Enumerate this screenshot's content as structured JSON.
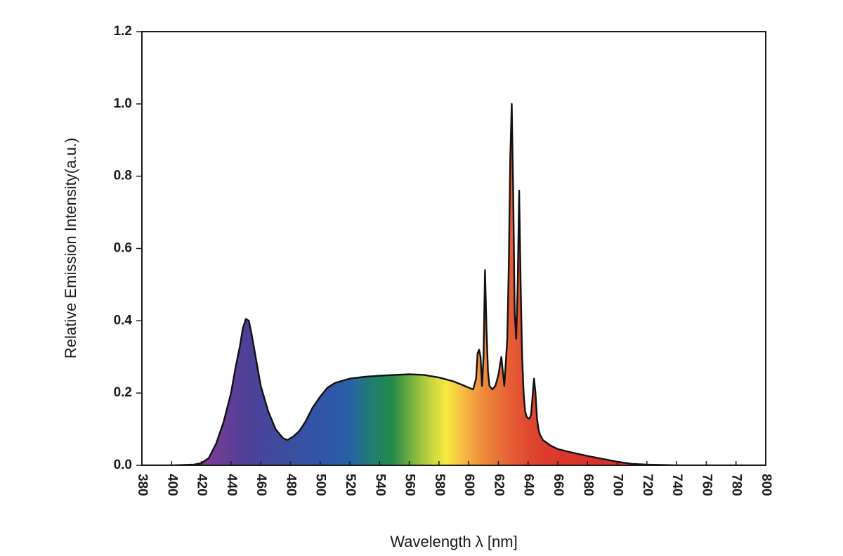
{
  "chart_data": {
    "type": "area",
    "title": "",
    "xlabel": "Wavelength λ [nm]",
    "ylabel": "Relative Emission Intensity(a.u.)",
    "xlim": [
      380,
      800
    ],
    "ylim": [
      0,
      1.2
    ],
    "x_ticks": [
      380,
      400,
      420,
      440,
      460,
      480,
      500,
      520,
      540,
      560,
      580,
      600,
      620,
      640,
      660,
      680,
      700,
      720,
      740,
      760,
      780,
      800
    ],
    "y_ticks": [
      "0.0",
      "0.2",
      "0.4",
      "0.6",
      "0.8",
      "1.0",
      "1.2"
    ],
    "grid": false,
    "legend": "none",
    "fill": "visible-spectrum gradient",
    "line_color": "#111111",
    "series": [
      {
        "x": [
          380,
          400,
          415,
          420,
          425,
          430,
          435,
          440,
          443,
          446,
          448,
          450,
          452,
          454,
          457,
          460,
          465,
          470,
          475,
          478,
          482,
          486,
          490,
          495,
          500,
          505,
          510,
          520,
          530,
          540,
          550,
          560,
          570,
          580,
          590,
          596,
          600,
          603,
          605,
          606,
          607,
          608,
          609,
          610,
          611,
          612,
          613,
          614,
          616,
          618,
          620,
          622,
          624,
          626,
          627,
          628,
          629,
          630,
          631,
          632,
          633,
          634,
          635,
          636,
          637,
          638,
          639,
          640,
          641,
          642,
          643,
          644,
          645,
          646,
          647,
          648,
          650,
          655,
          660,
          670,
          680,
          690,
          700,
          710,
          720,
          730,
          740,
          760,
          780,
          800
        ],
        "y": [
          0.0,
          0.0,
          0.002,
          0.006,
          0.02,
          0.06,
          0.12,
          0.2,
          0.27,
          0.33,
          0.38,
          0.405,
          0.4,
          0.36,
          0.29,
          0.22,
          0.15,
          0.1,
          0.075,
          0.07,
          0.08,
          0.095,
          0.12,
          0.16,
          0.19,
          0.215,
          0.228,
          0.24,
          0.245,
          0.248,
          0.25,
          0.252,
          0.25,
          0.243,
          0.232,
          0.222,
          0.215,
          0.21,
          0.24,
          0.31,
          0.32,
          0.3,
          0.22,
          0.3,
          0.54,
          0.38,
          0.26,
          0.22,
          0.21,
          0.22,
          0.25,
          0.3,
          0.22,
          0.35,
          0.55,
          0.85,
          1.0,
          0.75,
          0.42,
          0.35,
          0.5,
          0.76,
          0.5,
          0.3,
          0.2,
          0.15,
          0.135,
          0.13,
          0.13,
          0.14,
          0.19,
          0.24,
          0.2,
          0.13,
          0.1,
          0.085,
          0.07,
          0.055,
          0.045,
          0.035,
          0.026,
          0.018,
          0.01,
          0.004,
          0.002,
          0.001,
          0.0,
          0.0,
          0.0,
          0.0
        ]
      }
    ]
  }
}
